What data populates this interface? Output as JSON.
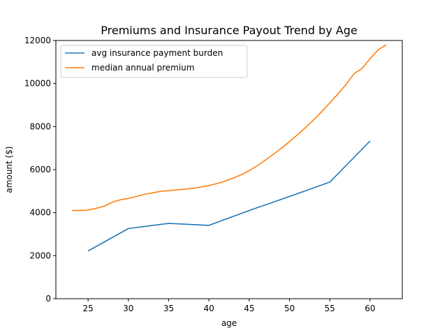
{
  "chart_data": {
    "type": "line",
    "title": "Premiums and Insurance Payout Trend by Age",
    "xlabel": "age",
    "ylabel": "amount ($)",
    "xlim": [
      21,
      64
    ],
    "ylim": [
      0,
      12000
    ],
    "xticks": [
      25,
      30,
      35,
      40,
      45,
      50,
      55,
      60
    ],
    "yticks": [
      0,
      2000,
      4000,
      6000,
      8000,
      10000,
      12000
    ],
    "grid": false,
    "legend_position": "top-left",
    "series": [
      {
        "name": "avg insurance payment burden",
        "color": "#1f77b4",
        "x": [
          25,
          30,
          35,
          40,
          45,
          50,
          55,
          60
        ],
        "y": [
          2220,
          3260,
          3500,
          3410,
          4100,
          4750,
          5420,
          7330
        ]
      },
      {
        "name": "median annual premium",
        "color": "#ff7f0e",
        "x": [
          23,
          24,
          25,
          26,
          27,
          28,
          29,
          30,
          31,
          32,
          33,
          34,
          35,
          36,
          37,
          38,
          39,
          40,
          41,
          42,
          43,
          44,
          45,
          46,
          47,
          48,
          49,
          50,
          51,
          52,
          53,
          54,
          55,
          56,
          57,
          58,
          59,
          60,
          61,
          62
        ],
        "y": [
          4100,
          4100,
          4120,
          4200,
          4300,
          4480,
          4600,
          4660,
          4750,
          4850,
          4920,
          4990,
          5020,
          5060,
          5090,
          5130,
          5190,
          5260,
          5350,
          5460,
          5600,
          5760,
          5950,
          6180,
          6440,
          6710,
          7000,
          7300,
          7620,
          7960,
          8310,
          8700,
          9100,
          9510,
          9950,
          10450,
          10700,
          11160,
          11560,
          11800
        ]
      }
    ]
  }
}
